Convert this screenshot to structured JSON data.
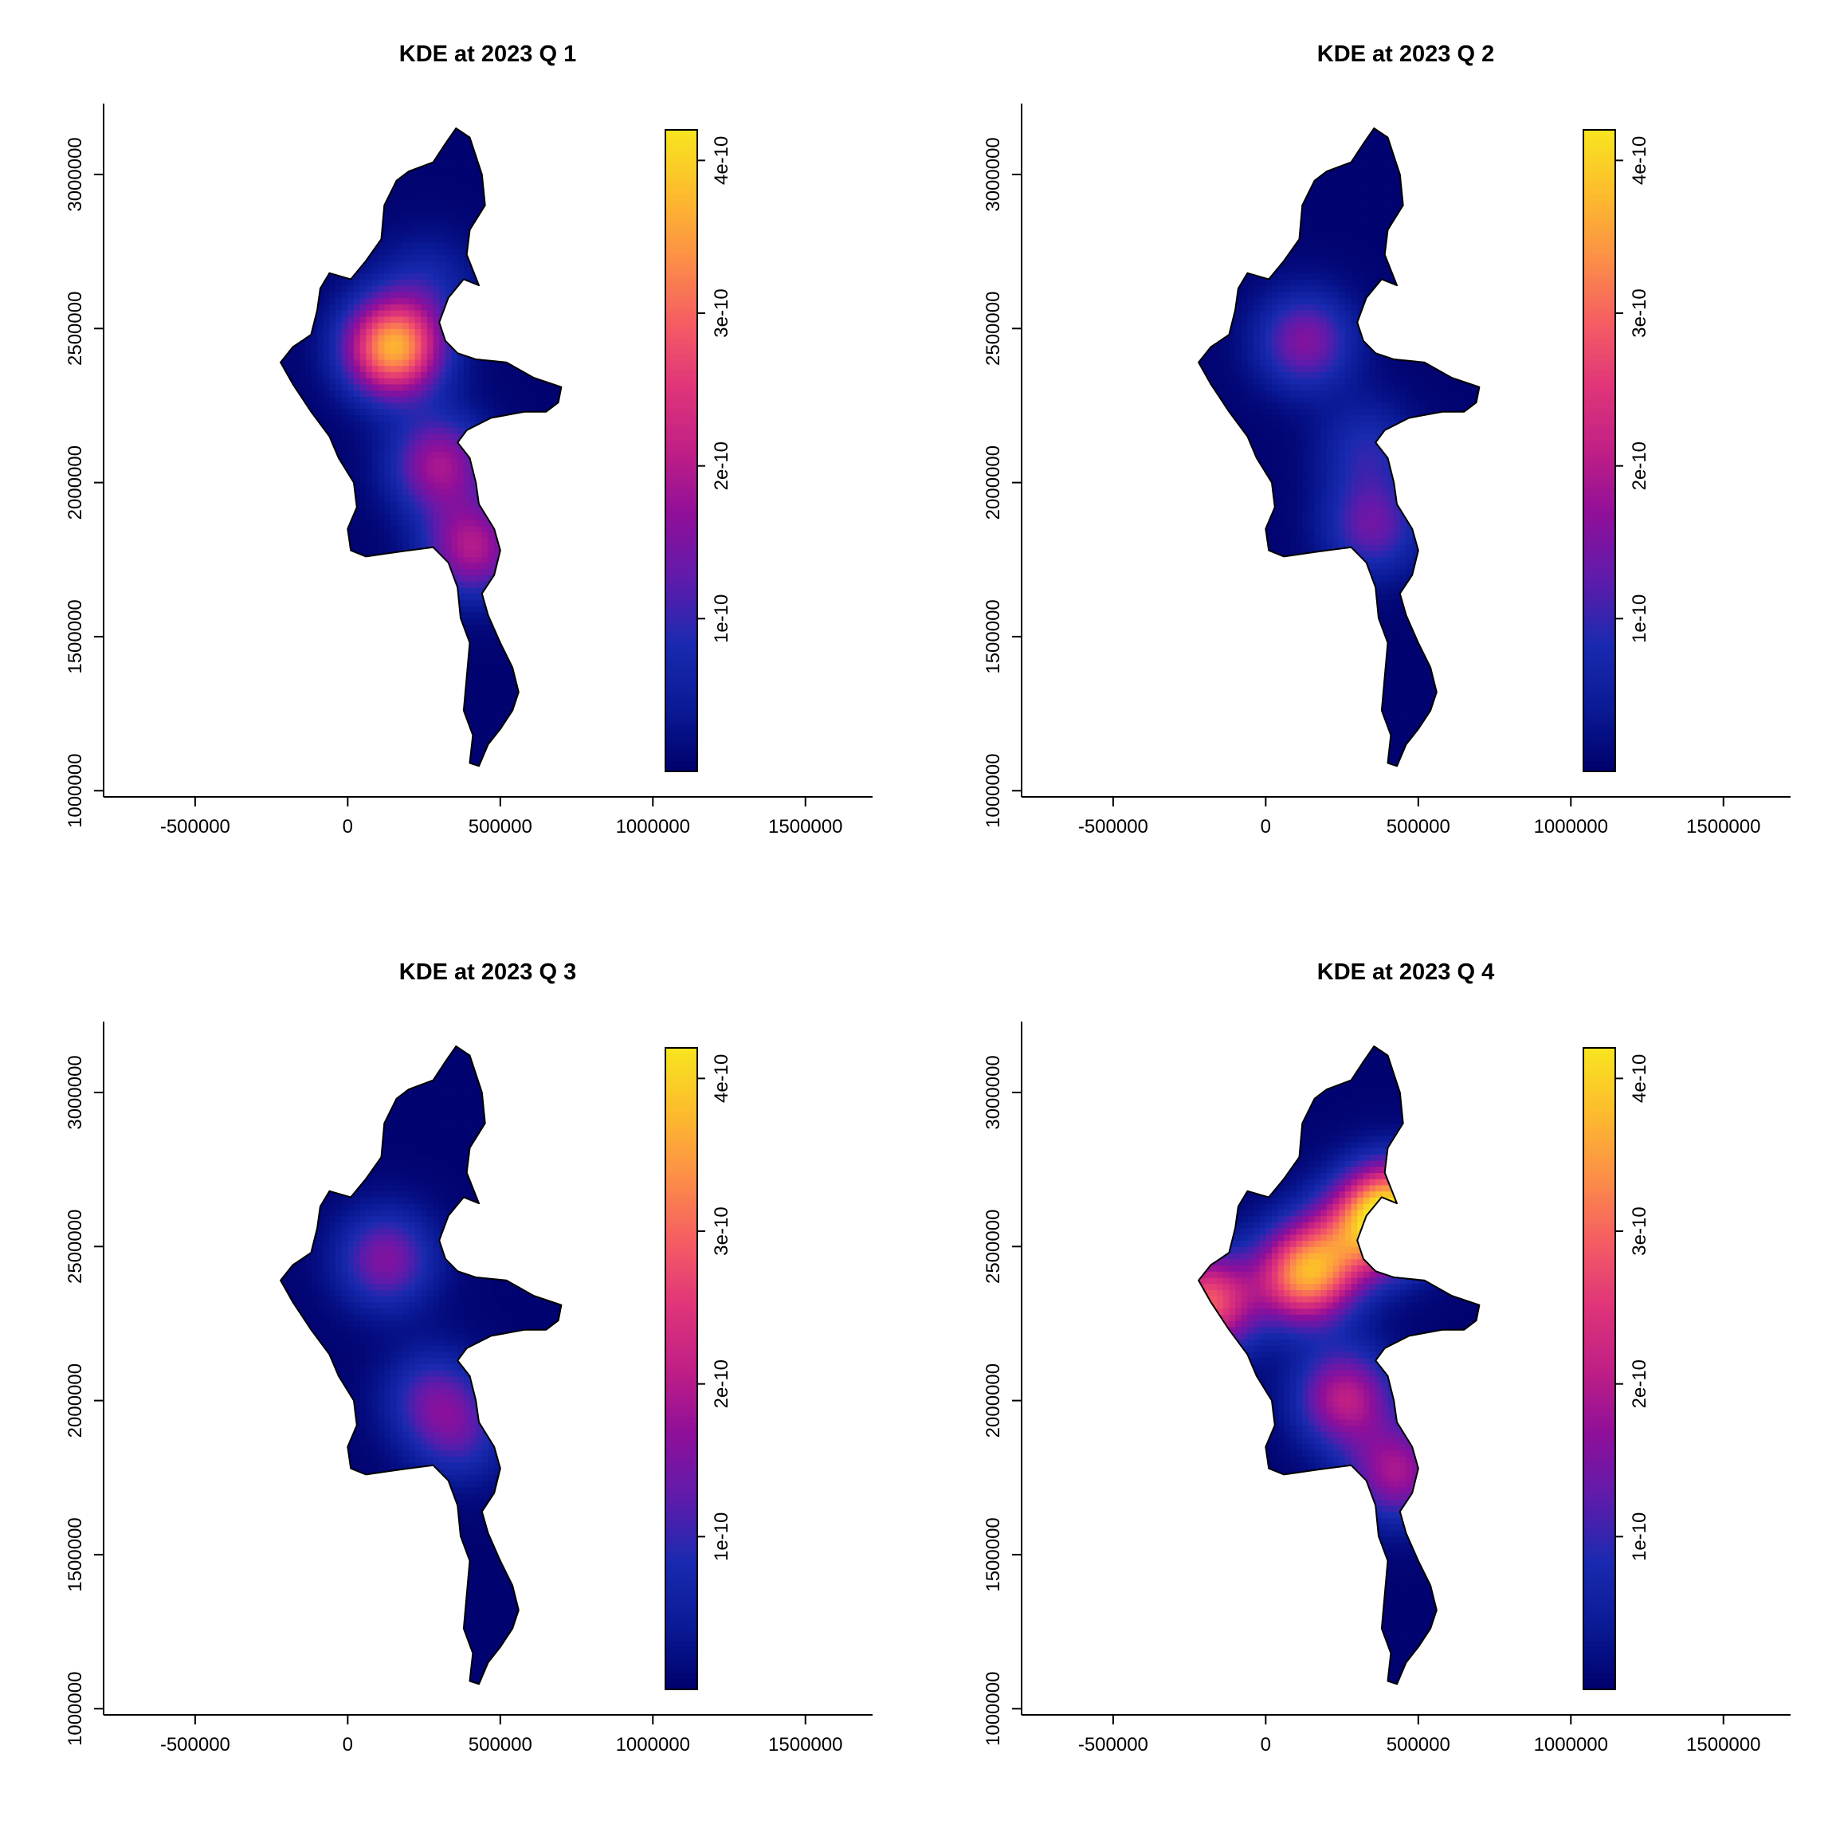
{
  "chart_data": [
    {
      "type": "heatmap",
      "title": "KDE at 2023 Q 1",
      "x_ticks": [
        -500000,
        0,
        500000,
        1000000,
        1500000
      ],
      "y_ticks": [
        1000000,
        1500000,
        2000000,
        2500000,
        3000000
      ],
      "xlim": [
        -800000,
        1720000
      ],
      "ylim": [
        980000,
        3230000
      ],
      "colorbar": {
        "ticks": [
          "1e-10",
          "2e-10",
          "3e-10",
          "4e-10"
        ],
        "tick_values": [
          1e-10,
          2e-10,
          3e-10,
          4e-10
        ],
        "range": [
          0,
          4.2e-10
        ]
      },
      "hotspots": [
        {
          "x": 140000,
          "y": 2430000,
          "peak": 3.6e-10
        },
        {
          "x": 290000,
          "y": 2050000,
          "peak": 1.8e-10
        },
        {
          "x": 400000,
          "y": 1780000,
          "peak": 1.9e-10
        },
        {
          "x": 250000,
          "y": 2640000,
          "peak": 6e-11
        }
      ]
    },
    {
      "type": "heatmap",
      "title": "KDE at 2023 Q 2",
      "x_ticks": [
        -500000,
        0,
        500000,
        1000000,
        1500000
      ],
      "y_ticks": [
        1000000,
        1500000,
        2000000,
        2500000,
        3000000
      ],
      "xlim": [
        -800000,
        1720000
      ],
      "ylim": [
        980000,
        3230000
      ],
      "colorbar": {
        "ticks": [
          "1e-10",
          "2e-10",
          "3e-10",
          "4e-10"
        ],
        "tick_values": [
          1e-10,
          2e-10,
          3e-10,
          4e-10
        ],
        "range": [
          0,
          4.2e-10
        ]
      },
      "hotspots": [
        {
          "x": 120000,
          "y": 2450000,
          "peak": 1.5e-10
        },
        {
          "x": 340000,
          "y": 1850000,
          "peak": 1.3e-10
        },
        {
          "x": 320000,
          "y": 2100000,
          "peak": 8e-11
        }
      ]
    },
    {
      "type": "heatmap",
      "title": "KDE at 2023 Q 3",
      "x_ticks": [
        -500000,
        0,
        500000,
        1000000,
        1500000
      ],
      "y_ticks": [
        1000000,
        1500000,
        2000000,
        2500000,
        3000000
      ],
      "xlim": [
        -800000,
        1720000
      ],
      "ylim": [
        980000,
        3230000
      ],
      "colorbar": {
        "ticks": [
          "1e-10",
          "2e-10",
          "3e-10",
          "4e-10"
        ],
        "tick_values": [
          1e-10,
          2e-10,
          3e-10,
          4e-10
        ],
        "range": [
          0,
          4.2e-10
        ]
      },
      "hotspots": [
        {
          "x": 115000,
          "y": 2450000,
          "peak": 1.5e-10
        },
        {
          "x": 270000,
          "y": 2000000,
          "peak": 1.1e-10
        },
        {
          "x": 360000,
          "y": 1880000,
          "peak": 9e-11
        }
      ]
    },
    {
      "type": "heatmap",
      "title": "KDE at 2023 Q 4",
      "x_ticks": [
        -500000,
        0,
        500000,
        1000000,
        1500000
      ],
      "y_ticks": [
        1000000,
        1500000,
        2000000,
        2500000,
        3000000
      ],
      "xlim": [
        -800000,
        1720000
      ],
      "ylim": [
        980000,
        3230000
      ],
      "colorbar": {
        "ticks": [
          "1e-10",
          "2e-10",
          "3e-10",
          "4e-10"
        ],
        "tick_values": [
          1e-10,
          2e-10,
          3e-10,
          4e-10
        ],
        "range": [
          0,
          4.2e-10
        ]
      },
      "hotspots": [
        {
          "x": 400000,
          "y": 2600000,
          "peak": 4.1e-10
        },
        {
          "x": 120000,
          "y": 2400000,
          "peak": 3.3e-10
        },
        {
          "x": -200000,
          "y": 2310000,
          "peak": 2.8e-10
        },
        {
          "x": 250000,
          "y": 2000000,
          "peak": 2e-10
        },
        {
          "x": 420000,
          "y": 1760000,
          "peak": 1.8e-10
        },
        {
          "x": 260000,
          "y": 2520000,
          "peak": 1.4e-10
        }
      ]
    }
  ]
}
